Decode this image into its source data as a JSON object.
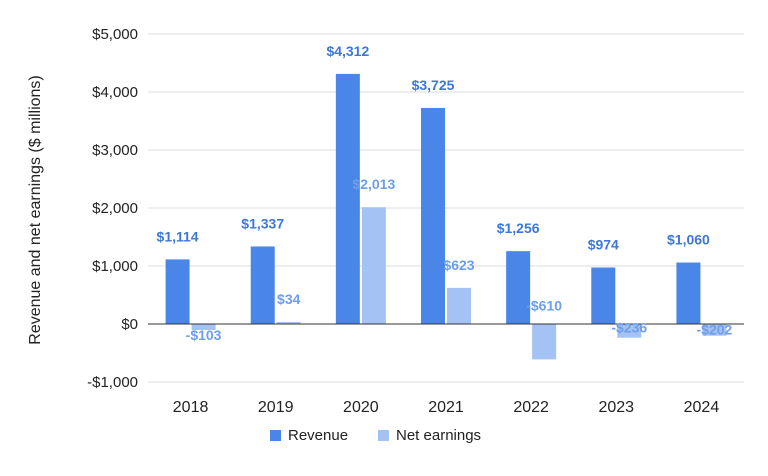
{
  "chart_data": {
    "type": "bar",
    "ylabel": "Revenue and net earnings ($ millions)",
    "categories": [
      "2018",
      "2019",
      "2020",
      "2021",
      "2022",
      "2023",
      "2024"
    ],
    "series": [
      {
        "name": "Revenue",
        "color": "#4a86e8",
        "values": [
          1114,
          1337,
          4312,
          3725,
          1256,
          974,
          1060
        ],
        "labels": [
          "$1,114",
          "$1,337",
          "$4,312",
          "$3,725",
          "$1,256",
          "$974",
          "$1,060"
        ]
      },
      {
        "name": "Net earnings",
        "color": "#a4c2f4",
        "values": [
          -103,
          34,
          2013,
          623,
          -610,
          -236,
          -202
        ],
        "labels": [
          "-$103",
          "$34",
          "$2,013",
          "$623",
          "-$610",
          "-$236",
          "-$202"
        ]
      }
    ],
    "ylim": [
      -1000,
      5000
    ],
    "yticks": [
      -1000,
      0,
      1000,
      2000,
      3000,
      4000,
      5000
    ],
    "ytick_labels": [
      "-$1,000",
      "$0",
      "$1,000",
      "$2,000",
      "$3,000",
      "$4,000",
      "$5,000"
    ],
    "label_colors": {
      "Revenue": "#3c78d8",
      "Net earnings": "#6d9eeb"
    },
    "grid": true,
    "legend_position": "bottom"
  }
}
